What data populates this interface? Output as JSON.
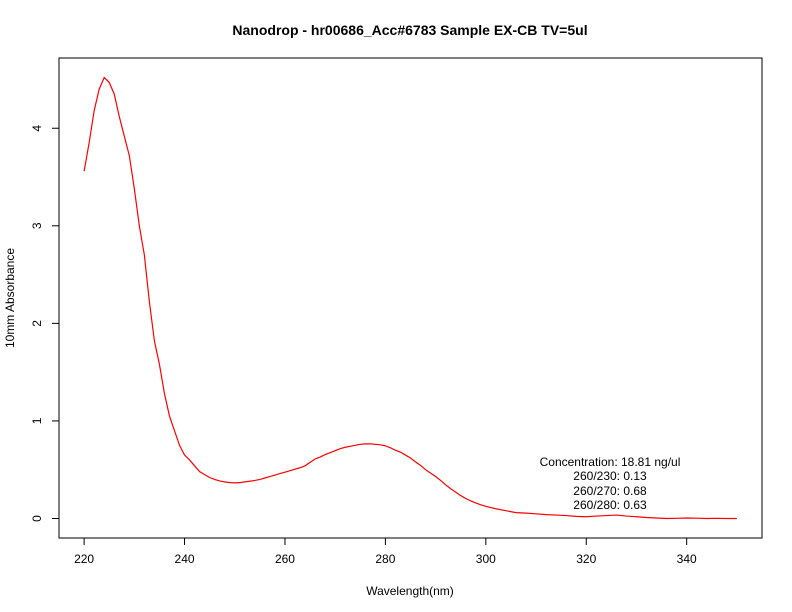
{
  "chart_data": {
    "type": "line",
    "title": "Nanodrop - hr00686_Acc#6783 Sample EX-CB   TV=5ul",
    "xlabel": "Wavelength(nm)",
    "ylabel": "10mm Absorbance",
    "xlim": [
      215,
      355
    ],
    "ylim": [
      -0.2,
      4.72
    ],
    "x_ticks": [
      220,
      240,
      260,
      280,
      300,
      320,
      340
    ],
    "y_ticks": [
      0,
      1,
      2,
      3,
      4
    ],
    "grid": false,
    "series": [
      {
        "color": "#ff0000",
        "x": [
          220,
          221,
          222,
          223,
          224,
          225,
          226,
          227,
          228,
          229,
          230,
          231,
          232,
          233,
          234,
          235,
          236,
          237,
          238,
          239,
          240,
          241,
          242,
          243,
          244,
          245,
          246,
          247,
          248,
          249,
          250,
          251,
          252,
          253,
          254,
          255,
          256,
          257,
          258,
          259,
          260,
          261,
          262,
          263,
          264,
          265,
          266,
          267,
          268,
          269,
          270,
          271,
          272,
          273,
          274,
          275,
          276,
          277,
          278,
          279,
          280,
          281,
          282,
          283,
          284,
          285,
          286,
          287,
          288,
          289,
          290,
          291,
          292,
          293,
          294,
          295,
          296,
          297,
          298,
          299,
          300,
          302,
          304,
          306,
          308,
          310,
          312,
          314,
          316,
          318,
          320,
          322,
          324,
          326,
          328,
          330,
          332,
          334,
          336,
          338,
          340,
          342,
          344,
          346,
          348,
          350
        ],
        "y": [
          3.56,
          3.85,
          4.18,
          4.4,
          4.52,
          4.47,
          4.35,
          4.12,
          3.92,
          3.72,
          3.38,
          3.0,
          2.7,
          2.22,
          1.82,
          1.58,
          1.28,
          1.05,
          0.9,
          0.75,
          0.65,
          0.6,
          0.54,
          0.48,
          0.45,
          0.42,
          0.4,
          0.385,
          0.375,
          0.368,
          0.365,
          0.368,
          0.375,
          0.382,
          0.39,
          0.4,
          0.415,
          0.43,
          0.445,
          0.46,
          0.475,
          0.49,
          0.505,
          0.52,
          0.54,
          0.575,
          0.61,
          0.63,
          0.655,
          0.675,
          0.695,
          0.715,
          0.73,
          0.74,
          0.75,
          0.76,
          0.765,
          0.765,
          0.76,
          0.755,
          0.745,
          0.725,
          0.7,
          0.68,
          0.65,
          0.62,
          0.58,
          0.545,
          0.5,
          0.465,
          0.43,
          0.39,
          0.345,
          0.305,
          0.27,
          0.235,
          0.205,
          0.18,
          0.16,
          0.14,
          0.125,
          0.1,
          0.08,
          0.06,
          0.055,
          0.048,
          0.04,
          0.035,
          0.03,
          0.022,
          0.018,
          0.025,
          0.03,
          0.035,
          0.025,
          0.018,
          0.01,
          0.005,
          0.0,
          0.002,
          0.005,
          0.003,
          0.0,
          0.002,
          0.0,
          0.0
        ]
      }
    ],
    "annotations": [
      "Concentration: 18.81 ng/ul",
      "260/230: 0.13",
      "260/270: 0.68",
      "260/280: 0.63"
    ]
  }
}
